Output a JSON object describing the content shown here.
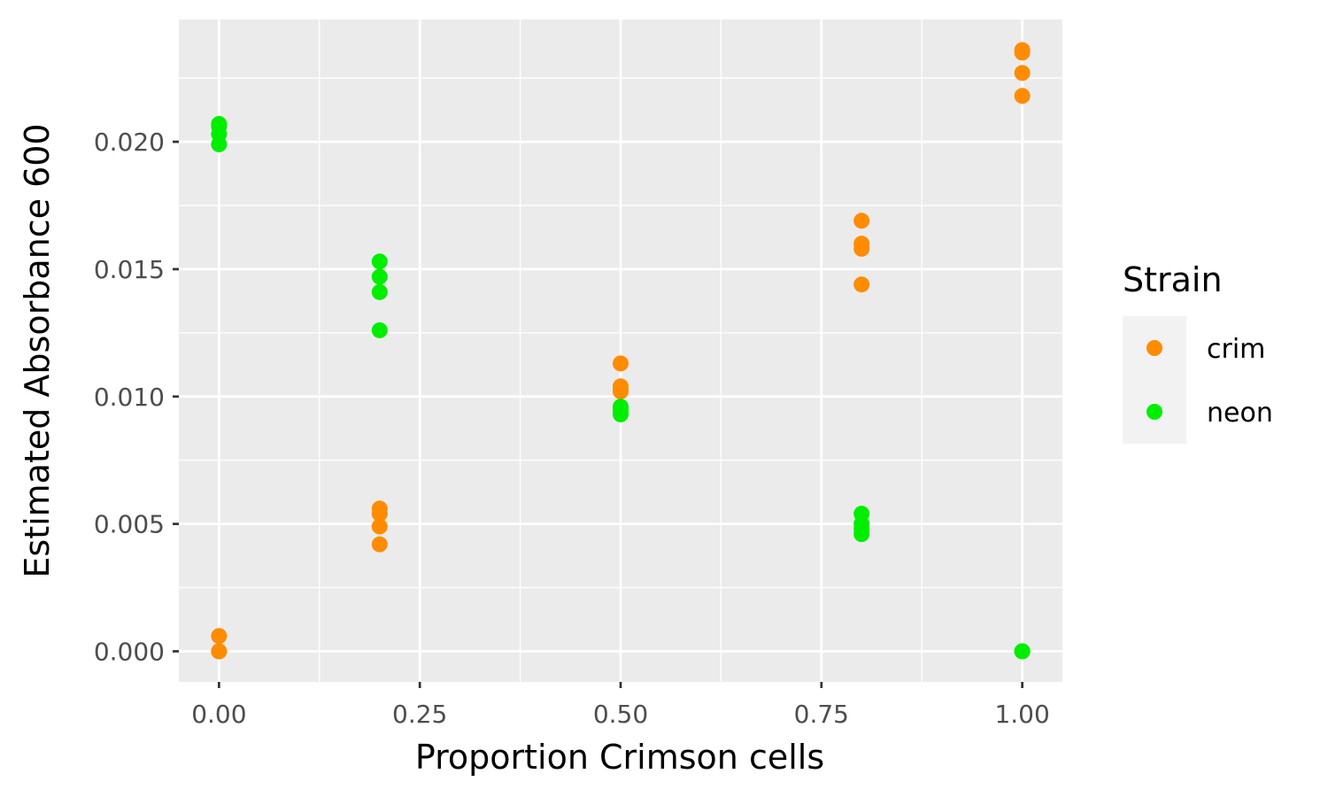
{
  "chart_data": {
    "type": "scatter",
    "xlabel": "Proportion Crimson cells",
    "ylabel": "Estimated Absorbance 600",
    "xlim": [
      -0.05,
      1.05
    ],
    "ylim": [
      -0.0012,
      0.0248
    ],
    "x_ticks": [
      0.0,
      0.25,
      0.5,
      0.75,
      1.0
    ],
    "x_tick_labels": [
      "0.00",
      "0.25",
      "0.50",
      "0.75",
      "1.00"
    ],
    "y_ticks": [
      0.0,
      0.005,
      0.01,
      0.015,
      0.02
    ],
    "y_tick_labels": [
      "0.000",
      "0.005",
      "0.010",
      "0.015",
      "0.020"
    ],
    "grid": true,
    "panel_background": "#ebebeb",
    "legend": {
      "title": "Strain",
      "position": "right"
    },
    "series": [
      {
        "name": "crim",
        "color": "#ff8c00",
        "points": [
          [
            0.0,
            0.0
          ],
          [
            0.0,
            0.0
          ],
          [
            0.0,
            0.0006
          ],
          [
            0.0,
            0.0
          ],
          [
            0.2,
            0.0056
          ],
          [
            0.2,
            0.0054
          ],
          [
            0.2,
            0.0049
          ],
          [
            0.2,
            0.0042
          ],
          [
            0.5,
            0.0113
          ],
          [
            0.5,
            0.0104
          ],
          [
            0.5,
            0.0103
          ],
          [
            0.5,
            0.0102
          ],
          [
            0.8,
            0.0169
          ],
          [
            0.8,
            0.016
          ],
          [
            0.8,
            0.0158
          ],
          [
            0.8,
            0.0144
          ],
          [
            1.0,
            0.0236
          ],
          [
            1.0,
            0.0235
          ],
          [
            1.0,
            0.0227
          ],
          [
            1.0,
            0.0218
          ]
        ]
      },
      {
        "name": "neon",
        "color": "#00ee00",
        "points": [
          [
            0.0,
            0.0207
          ],
          [
            0.0,
            0.0206
          ],
          [
            0.0,
            0.0203
          ],
          [
            0.0,
            0.0199
          ],
          [
            0.2,
            0.0153
          ],
          [
            0.2,
            0.0147
          ],
          [
            0.2,
            0.0141
          ],
          [
            0.2,
            0.0126
          ],
          [
            0.5,
            0.0096
          ],
          [
            0.5,
            0.0095
          ],
          [
            0.5,
            0.0094
          ],
          [
            0.5,
            0.0093
          ],
          [
            0.8,
            0.0054
          ],
          [
            0.8,
            0.005
          ],
          [
            0.8,
            0.0048
          ],
          [
            0.8,
            0.0046
          ],
          [
            1.0,
            0.0
          ],
          [
            1.0,
            0.0
          ],
          [
            1.0,
            0.0
          ],
          [
            1.0,
            0.0
          ]
        ]
      }
    ]
  }
}
